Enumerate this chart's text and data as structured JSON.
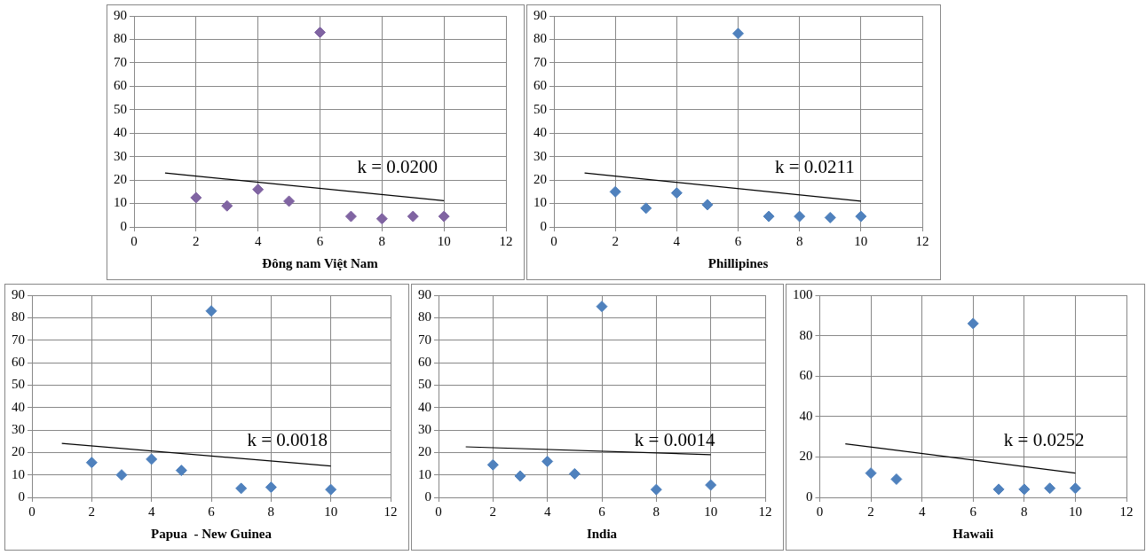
{
  "chart_data": [
    {
      "type": "scatter",
      "xlabel": "Đông nam Việt Nam",
      "xlim": [
        0,
        12
      ],
      "xticks": [
        0,
        2,
        4,
        6,
        8,
        10,
        12
      ],
      "ylim": [
        0,
        90
      ],
      "yticks": [
        0,
        10,
        20,
        30,
        40,
        50,
        60,
        70,
        80,
        90
      ],
      "grid": true,
      "legend": false,
      "annotations": [
        "k = 0.0200"
      ],
      "series": [
        {
          "type": "scatter",
          "marker": "diamond",
          "color": "#8064a2",
          "x": [
            2,
            3,
            4,
            5,
            6,
            7,
            8,
            9,
            10
          ],
          "values": [
            12.5,
            9,
            16,
            11,
            83,
            4.5,
            3.5,
            4.5,
            4.5
          ]
        },
        {
          "type": "line",
          "marker": "none",
          "color": "#000000",
          "x": [
            1,
            10
          ],
          "values": [
            23,
            11.2
          ]
        }
      ]
    },
    {
      "type": "scatter",
      "xlabel": "Phillipines",
      "xlim": [
        0,
        12
      ],
      "xticks": [
        0,
        2,
        4,
        6,
        8,
        10,
        12
      ],
      "ylim": [
        0,
        90
      ],
      "yticks": [
        0,
        10,
        20,
        30,
        40,
        50,
        60,
        70,
        80,
        90
      ],
      "grid": true,
      "legend": false,
      "annotations": [
        "k = 0.0211"
      ],
      "series": [
        {
          "type": "scatter",
          "marker": "diamond",
          "color": "#4f81bd",
          "x": [
            2,
            3,
            4,
            5,
            6,
            7,
            8,
            9,
            10
          ],
          "values": [
            15,
            8,
            14.5,
            9.5,
            82.5,
            4.5,
            4.5,
            4,
            4.5
          ]
        },
        {
          "type": "line",
          "marker": "none",
          "color": "#000000",
          "x": [
            1,
            10
          ],
          "values": [
            23,
            11
          ]
        }
      ]
    },
    {
      "type": "scatter",
      "xlabel": "Papua  - New Guinea",
      "xlim": [
        0,
        12
      ],
      "xticks": [
        0,
        2,
        4,
        6,
        8,
        10,
        12
      ],
      "ylim": [
        0,
        90
      ],
      "yticks": [
        0,
        10,
        20,
        30,
        40,
        50,
        60,
        70,
        80,
        90
      ],
      "grid": true,
      "legend": false,
      "annotations": [
        "k = 0.0018"
      ],
      "series": [
        {
          "type": "scatter",
          "marker": "diamond",
          "color": "#4f81bd",
          "x": [
            2,
            3,
            4,
            5,
            6,
            7,
            8,
            10
          ],
          "values": [
            15.5,
            10,
            17,
            12,
            83,
            4,
            4.5,
            3.5
          ]
        },
        {
          "type": "line",
          "marker": "none",
          "color": "#000000",
          "x": [
            1,
            10
          ],
          "values": [
            24,
            14
          ]
        }
      ]
    },
    {
      "type": "scatter",
      "xlabel": "India",
      "xlim": [
        0,
        12
      ],
      "xticks": [
        0,
        2,
        4,
        6,
        8,
        10,
        12
      ],
      "ylim": [
        0,
        90
      ],
      "yticks": [
        0,
        10,
        20,
        30,
        40,
        50,
        60,
        70,
        80,
        90
      ],
      "grid": true,
      "legend": false,
      "annotations": [
        "k = 0.0014"
      ],
      "series": [
        {
          "type": "scatter",
          "marker": "diamond",
          "color": "#4f81bd",
          "x": [
            2,
            3,
            4,
            5,
            6,
            8,
            10
          ],
          "values": [
            14.5,
            9.5,
            16,
            10.5,
            85,
            3.5,
            5.5
          ]
        },
        {
          "type": "line",
          "marker": "none",
          "color": "#000000",
          "x": [
            1,
            10
          ],
          "values": [
            22.5,
            19
          ]
        }
      ]
    },
    {
      "type": "scatter",
      "xlabel": "Hawaii",
      "xlim": [
        0,
        12
      ],
      "xticks": [
        0,
        2,
        4,
        6,
        8,
        10,
        12
      ],
      "ylim": [
        0,
        100
      ],
      "yticks": [
        0,
        20,
        40,
        60,
        80,
        100
      ],
      "grid": true,
      "legend": false,
      "annotations": [
        "k = 0.0252"
      ],
      "series": [
        {
          "type": "scatter",
          "marker": "diamond",
          "color": "#4f81bd",
          "x": [
            2,
            3,
            6,
            7,
            8,
            9,
            10
          ],
          "values": [
            12,
            9,
            86,
            4,
            4,
            4.5,
            4.5
          ]
        },
        {
          "type": "line",
          "marker": "none",
          "color": "#000000",
          "x": [
            1,
            10
          ],
          "values": [
            26.5,
            12
          ]
        }
      ]
    }
  ]
}
